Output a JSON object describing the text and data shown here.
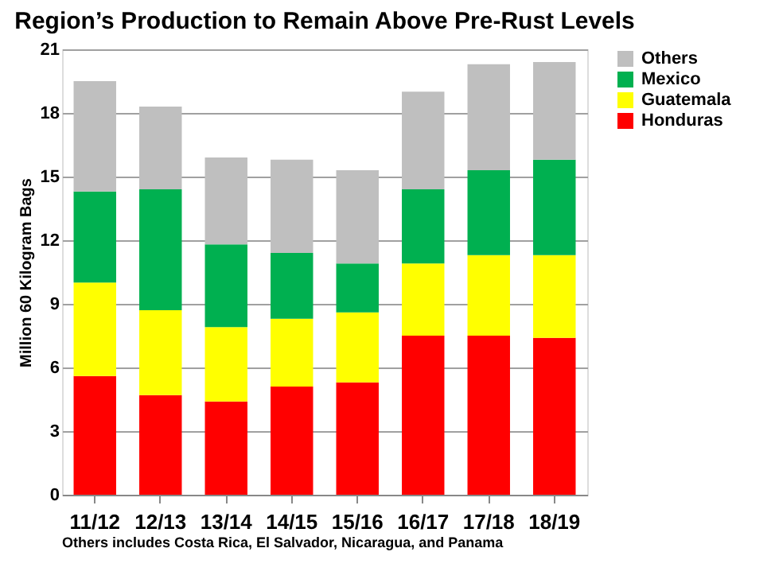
{
  "chart_data": {
    "type": "bar",
    "stacked": true,
    "title": "Region’s Production to Remain Above Pre-Rust Levels",
    "ylabel": "Million 60 Kilogram Bags",
    "categories": [
      "11/12",
      "12/13",
      "13/14",
      "14/15",
      "15/16",
      "16/17",
      "17/18",
      "18/19"
    ],
    "series": [
      {
        "name": "Honduras",
        "color": "#ff0000",
        "values": [
          5.6,
          4.7,
          4.4,
          5.1,
          5.3,
          7.5,
          7.5,
          7.4
        ]
      },
      {
        "name": "Guatemala",
        "color": "#ffff00",
        "values": [
          4.4,
          4.0,
          3.5,
          3.2,
          3.3,
          3.4,
          3.8,
          3.9
        ]
      },
      {
        "name": "Mexico",
        "color": "#00b050",
        "values": [
          4.3,
          5.7,
          3.9,
          3.1,
          2.3,
          3.5,
          4.0,
          4.5
        ]
      },
      {
        "name": "Others",
        "color": "#bfbfbf",
        "values": [
          5.2,
          3.9,
          4.1,
          4.4,
          4.4,
          4.6,
          5.0,
          4.6
        ]
      }
    ],
    "ylim": [
      0,
      21
    ],
    "yticks": [
      0,
      3,
      6,
      9,
      12,
      15,
      18,
      21
    ],
    "grid": "y",
    "legend": "right",
    "annotations": [
      "Others includes Costa Rica, El Salvador, Nicaragua, and Panama"
    ]
  }
}
